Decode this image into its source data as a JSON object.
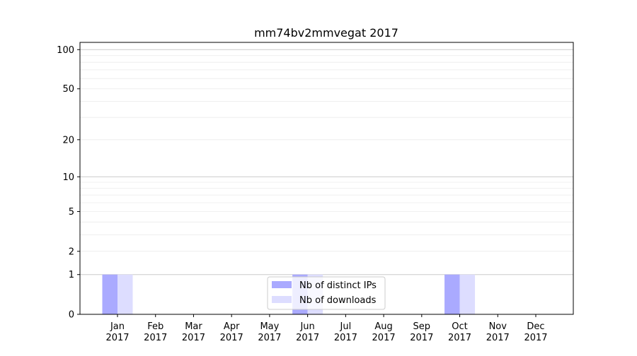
{
  "chart_data": {
    "type": "bar",
    "title": "mm74bv2mmvegat 2017",
    "xlabel": "",
    "ylabel": "",
    "yscale": "log1p",
    "ylim": [
      0,
      113.6
    ],
    "yticks": [
      0,
      1,
      2,
      5,
      10,
      20,
      50,
      100
    ],
    "grid": true,
    "legend_position": "lower-center",
    "categories": [
      "Jan\n2017",
      "Feb\n2017",
      "Mar\n2017",
      "Apr\n2017",
      "May\n2017",
      "Jun\n2017",
      "Jul\n2017",
      "Aug\n2017",
      "Sep\n2017",
      "Oct\n2017",
      "Nov\n2017",
      "Dec\n2017"
    ],
    "series": [
      {
        "name": "Nb of distinct IPs",
        "color": "#aaaaff",
        "values": [
          1,
          0,
          0,
          0,
          0,
          1,
          0,
          0,
          0,
          1,
          0,
          0
        ]
      },
      {
        "name": "Nb of downloads",
        "color": "#ddddff",
        "values": [
          1,
          0,
          0,
          0,
          0,
          1,
          0,
          0,
          0,
          1,
          0,
          0
        ]
      }
    ]
  }
}
